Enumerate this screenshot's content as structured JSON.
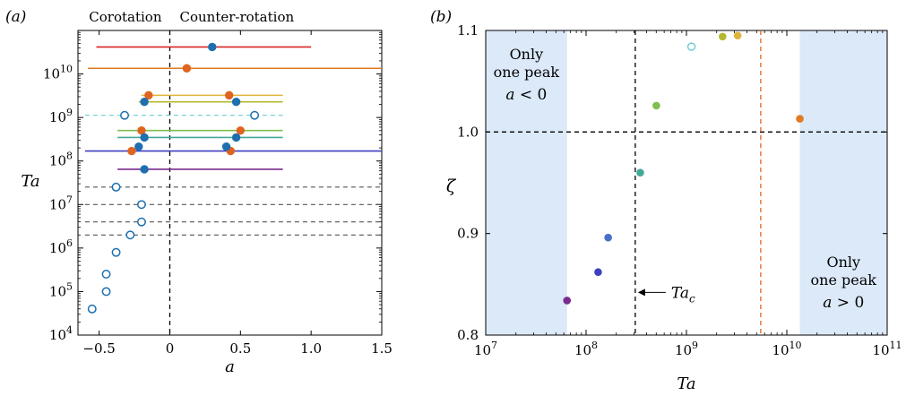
{
  "panels": {
    "a": {
      "label": "(a)"
    },
    "b": {
      "label": "(b)"
    }
  },
  "chart_data": [
    {
      "type": "scatter",
      "panel": "(a)",
      "xlabel": "a",
      "ylabel": "Ta",
      "xlim": [
        -0.65,
        1.5
      ],
      "ylim_log10": [
        4,
        11
      ],
      "yscale": "log",
      "xticks": [
        "−0.5",
        "0",
        "0.5",
        "1.0",
        "1.5"
      ],
      "xtick_values": [
        -0.5,
        0,
        0.5,
        1.0,
        1.5
      ],
      "yticks": [
        "10^4",
        "10^5",
        "10^6",
        "10^7",
        "10^8",
        "10^9",
        "10^10"
      ],
      "annotations": {
        "left": "Corotation",
        "right": "Counter-rotation"
      },
      "vertical_line_x": 0,
      "ranges": [
        {
          "log_ta": 10.62,
          "x_start": -0.52,
          "x_end": 1.0,
          "color": "#d62728",
          "style": "solid"
        },
        {
          "log_ta": 10.13,
          "x_start": -0.58,
          "x_end": 1.5,
          "color": "#e07b22",
          "style": "solid"
        },
        {
          "log_ta": 9.51,
          "x_start": -0.2,
          "x_end": 0.8,
          "color": "#e0b43a",
          "style": "solid"
        },
        {
          "log_ta": 9.36,
          "x_start": -0.22,
          "x_end": 0.8,
          "color": "#b5b82e",
          "style": "solid"
        },
        {
          "log_ta": 9.05,
          "x_start": -0.6,
          "x_end": 0.8,
          "color": "#6ccbd6",
          "style": "dashed"
        },
        {
          "log_ta": 8.7,
          "x_start": -0.37,
          "x_end": 0.8,
          "color": "#7fbf4f",
          "style": "solid"
        },
        {
          "log_ta": 8.54,
          "x_start": -0.37,
          "x_end": 0.8,
          "color": "#43a89a",
          "style": "solid"
        },
        {
          "log_ta": 8.23,
          "x_start": -0.6,
          "x_end": 1.5,
          "color": "#3f3fbf",
          "style": "solid"
        },
        {
          "log_ta": 7.81,
          "x_start": -0.37,
          "x_end": 0.8,
          "color": "#7a2a8f",
          "style": "solid"
        },
        {
          "log_ta": 7.4,
          "x_start": -0.6,
          "x_end": 1.5,
          "color": "#555555",
          "style": "dashed"
        },
        {
          "log_ta": 7.0,
          "x_start": -0.6,
          "x_end": 1.5,
          "color": "#555555",
          "style": "dashed"
        },
        {
          "log_ta": 6.6,
          "x_start": -0.6,
          "x_end": 1.5,
          "color": "#555555",
          "style": "dashed"
        },
        {
          "log_ta": 6.3,
          "x_start": -0.6,
          "x_end": 1.5,
          "color": "#555555",
          "style": "dashed"
        }
      ],
      "peaks_blue": [
        {
          "a": 0.3,
          "log_ta": 10.62
        },
        {
          "a": -0.18,
          "log_ta": 9.36
        },
        {
          "a": 0.47,
          "log_ta": 9.36
        },
        {
          "a": -0.18,
          "log_ta": 8.54
        },
        {
          "a": 0.47,
          "log_ta": 8.54
        },
        {
          "a": -0.22,
          "log_ta": 8.33
        },
        {
          "a": 0.4,
          "log_ta": 8.33
        },
        {
          "a": -0.18,
          "log_ta": 7.81
        }
      ],
      "peaks_orange": [
        {
          "a": 0.12,
          "log_ta": 10.13
        },
        {
          "a": -0.15,
          "log_ta": 9.51
        },
        {
          "a": 0.42,
          "log_ta": 9.51
        },
        {
          "a": -0.2,
          "log_ta": 8.7
        },
        {
          "a": 0.5,
          "log_ta": 8.7
        },
        {
          "a": -0.27,
          "log_ta": 8.23
        },
        {
          "a": 0.43,
          "log_ta": 8.23
        }
      ],
      "peaks_open": [
        {
          "a": -0.32,
          "log_ta": 9.05
        },
        {
          "a": 0.6,
          "log_ta": 9.05
        },
        {
          "a": -0.38,
          "log_ta": 7.4
        },
        {
          "a": -0.2,
          "log_ta": 7.0
        },
        {
          "a": -0.2,
          "log_ta": 6.6
        },
        {
          "a": -0.28,
          "log_ta": 6.3
        },
        {
          "a": -0.38,
          "log_ta": 5.9
        },
        {
          "a": -0.45,
          "log_ta": 5.4
        },
        {
          "a": -0.45,
          "log_ta": 5.0
        },
        {
          "a": -0.55,
          "log_ta": 4.6
        }
      ]
    },
    {
      "type": "scatter",
      "panel": "(b)",
      "xlabel": "Ta",
      "ylabel": "ζ",
      "xscale": "log",
      "xlim_log10": [
        7,
        11
      ],
      "ylim": [
        0.8,
        1.1
      ],
      "xticks": [
        "10^7",
        "10^8",
        "10^9",
        "10^10",
        "10^11"
      ],
      "yticks": [
        "0.8",
        "0.9",
        "1.0",
        "1.1"
      ],
      "ytick_values": [
        0.8,
        0.9,
        1.0,
        1.1
      ],
      "shaded_regions": [
        {
          "from_log10": 7,
          "to_log10": 7.81,
          "label_lines": [
            "Only",
            "one peak",
            "a < 0"
          ]
        },
        {
          "from_log10": 10.13,
          "to_log10": 11,
          "label_lines": [
            "Only",
            "one peak",
            "a > 0"
          ]
        }
      ],
      "horizontal_line_y": 1.0,
      "vertical_line_black_log10": 8.49,
      "vertical_line_orange_log10": 9.74,
      "annotation": {
        "text": "Ta",
        "subscript": "c"
      },
      "points": [
        {
          "log_ta": 7.81,
          "zeta": 0.834,
          "color": "#7a2a8f",
          "filled": true
        },
        {
          "log_ta": 8.12,
          "zeta": 0.862,
          "color": "#3f3fbf",
          "filled": true
        },
        {
          "log_ta": 8.22,
          "zeta": 0.896,
          "color": "#4a6fc8",
          "filled": true
        },
        {
          "log_ta": 8.54,
          "zeta": 0.96,
          "color": "#43a89a",
          "filled": true
        },
        {
          "log_ta": 8.7,
          "zeta": 1.026,
          "color": "#7fbf4f",
          "filled": true
        },
        {
          "log_ta": 9.05,
          "zeta": 1.084,
          "color": "#6ccbd6",
          "filled": false
        },
        {
          "log_ta": 9.36,
          "zeta": 1.094,
          "color": "#b5b82e",
          "filled": true
        },
        {
          "log_ta": 9.51,
          "zeta": 1.095,
          "color": "#e0b43a",
          "filled": true
        },
        {
          "log_ta": 10.13,
          "zeta": 1.013,
          "color": "#e07b22",
          "filled": true
        }
      ]
    }
  ]
}
